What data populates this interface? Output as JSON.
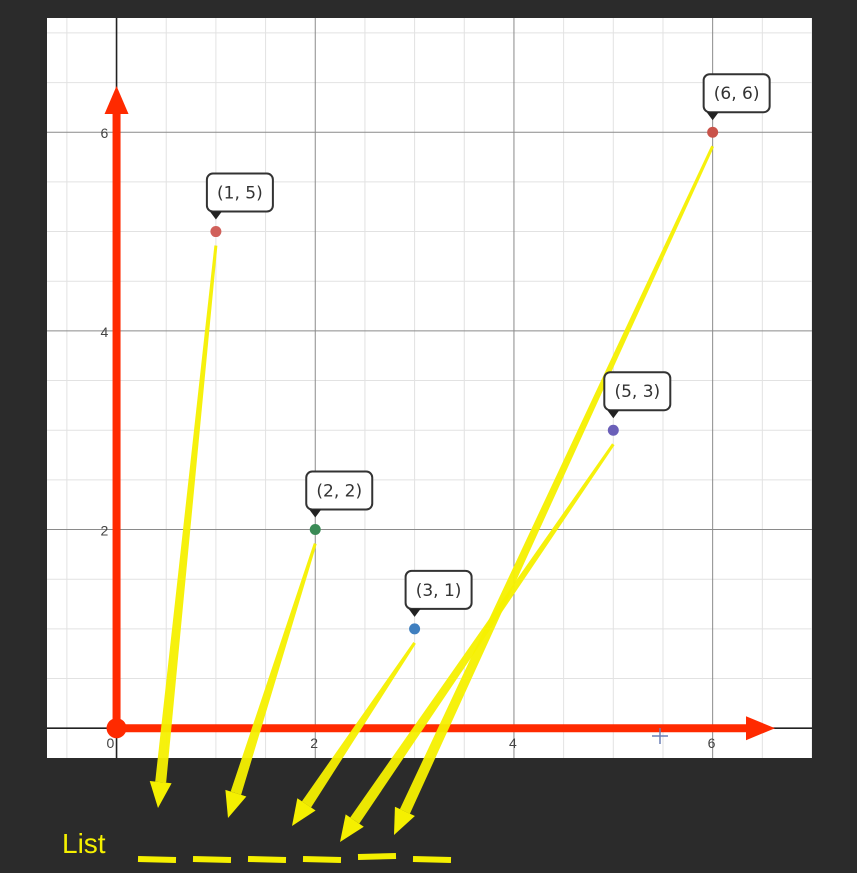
{
  "chart_data": {
    "type": "scatter",
    "title": "",
    "xlabel": "",
    "ylabel": "",
    "xlim": [
      -0.7,
      7.0
    ],
    "ylim": [
      -0.3,
      7.15
    ],
    "grid": true,
    "x_ticks": [
      "0",
      "2",
      "4",
      "6"
    ],
    "y_ticks": [
      "2",
      "4",
      "6"
    ],
    "points": [
      {
        "x": 1,
        "y": 5,
        "label": "(1, 5)",
        "color": "#d0605a"
      },
      {
        "x": 2,
        "y": 2,
        "label": "(2, 2)",
        "color": "#3a8a55"
      },
      {
        "x": 3,
        "y": 1,
        "label": "(3, 1)",
        "color": "#3f7fbf"
      },
      {
        "x": 5,
        "y": 3,
        "label": "(5, 3)",
        "color": "#6a5fb8"
      },
      {
        "x": 6,
        "y": 6,
        "label": "(6, 6)",
        "color": "#c9534a"
      }
    ],
    "origin_marker_color": "#ff2a00",
    "axis_arrow_color": "#ff2a00"
  },
  "annotation": {
    "label": "List",
    "color": "#f5f000",
    "slot_count": 6
  }
}
